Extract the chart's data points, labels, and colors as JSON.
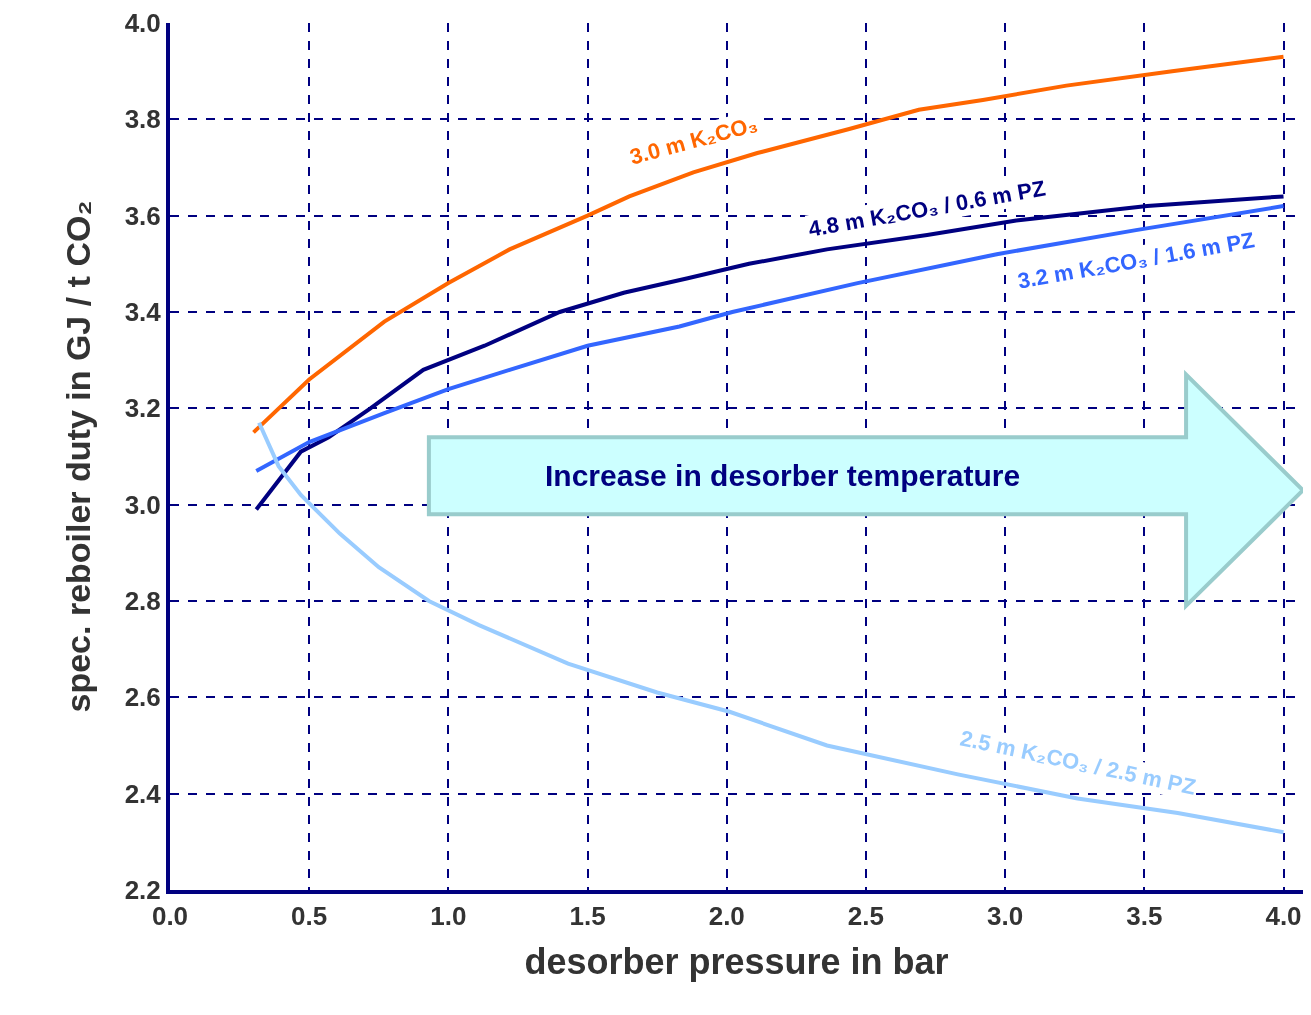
{
  "chart_data": {
    "type": "line",
    "xlabel": "desorber pressure in bar",
    "ylabel": "spec. reboiler duty in GJ / t CO₂",
    "xlim": [
      0,
      4.07
    ],
    "ylim": [
      2.2,
      4.0
    ],
    "xticks": [
      {
        "value": 0,
        "label": "0.0"
      },
      0.5,
      {
        "value": 1,
        "label": "1.0"
      },
      1.5,
      {
        "value": 2,
        "label": "2.0"
      },
      2.5,
      {
        "value": 3,
        "label": "3.0"
      },
      3.5,
      {
        "value": 4,
        "label": "4.0"
      }
    ],
    "yticks": [
      2.2,
      2.4,
      2.6,
      2.8,
      {
        "value": 3,
        "label": "3.0"
      },
      3.2,
      3.4,
      3.6,
      3.8,
      {
        "value": 4,
        "label": "4.0"
      }
    ],
    "grid": true,
    "legend": false,
    "marker": "none",
    "line_style": "solid",
    "annotations": [
      "Increase in desorber temperature"
    ],
    "series": [
      {
        "name": "3.0 m K₂CO₃",
        "color": "#ff6600",
        "x": [
          0.3,
          0.5,
          0.77,
          1.0,
          1.22,
          1.5,
          1.65,
          1.88,
          2.11,
          2.44,
          2.69,
          2.92,
          3.22,
          3.6,
          4.0
        ],
        "values": [
          3.15,
          3.26,
          3.38,
          3.46,
          3.53,
          3.6,
          3.64,
          3.69,
          3.73,
          3.78,
          3.82,
          3.84,
          3.87,
          3.9,
          3.93
        ]
      },
      {
        "name": "4.8 m K₂CO₃ / 0.6 m PZ",
        "color": "#000080",
        "x": [
          0.31,
          0.47,
          0.57,
          0.72,
          0.91,
          1.13,
          1.4,
          1.63,
          1.86,
          2.08,
          2.36,
          2.72,
          3.04,
          3.51,
          4.0
        ],
        "values": [
          2.99,
          3.11,
          3.14,
          3.2,
          3.28,
          3.33,
          3.4,
          3.44,
          3.47,
          3.5,
          3.53,
          3.56,
          3.59,
          3.62,
          3.64
        ]
      },
      {
        "name": "3.2 m K₂CO₃ / 1.6 m PZ",
        "color": "#3366ff",
        "x": [
          0.31,
          0.5,
          0.77,
          1.0,
          1.22,
          1.5,
          1.83,
          2.02,
          2.47,
          2.97,
          3.47,
          4.0
        ],
        "values": [
          3.07,
          3.13,
          3.19,
          3.24,
          3.28,
          3.33,
          3.37,
          3.4,
          3.46,
          3.52,
          3.57,
          3.62
        ]
      },
      {
        "name": "2.5 m K₂CO₃ / 2.5 m PZ",
        "color": "#99ccff",
        "x": [
          0.32,
          0.39,
          0.47,
          0.61,
          0.75,
          0.93,
          1.11,
          1.43,
          1.75,
          2.01,
          2.36,
          2.83,
          3.26,
          3.62,
          4.0
        ],
        "values": [
          3.17,
          3.08,
          3.02,
          2.94,
          2.87,
          2.8,
          2.75,
          2.67,
          2.61,
          2.57,
          2.5,
          2.44,
          2.39,
          2.36,
          2.32
        ]
      }
    ]
  }
}
